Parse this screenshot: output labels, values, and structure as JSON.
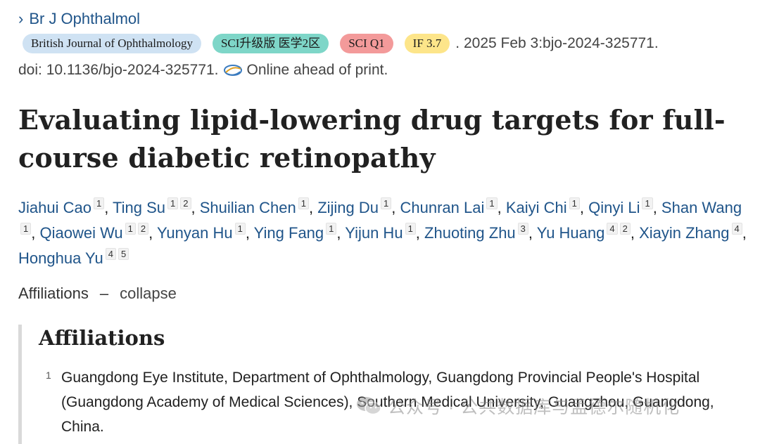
{
  "journal_link": {
    "label": "Br J Ophthalmol"
  },
  "badges": {
    "journal_full": "British Journal of Ophthalmology",
    "sci_partition": "SCI升级版 医学2区",
    "sci_q": "SCI Q1",
    "impact_factor": "IF 3.7"
  },
  "citation": {
    "date_id": ". 2025 Feb 3:bjo-2024-325771.",
    "doi": "doi: 10.1136/bjo-2024-325771.",
    "status": "Online ahead of print."
  },
  "title": "Evaluating lipid-lowering drug targets for full-course diabetic retinopathy",
  "authors": [
    {
      "name": "Jiahui Cao",
      "affs": [
        "1"
      ]
    },
    {
      "name": "Ting Su",
      "affs": [
        "1",
        "2"
      ]
    },
    {
      "name": "Shuilian Chen",
      "affs": [
        "1"
      ]
    },
    {
      "name": "Zijing Du",
      "affs": [
        "1"
      ]
    },
    {
      "name": "Chunran Lai",
      "affs": [
        "1"
      ]
    },
    {
      "name": "Kaiyi Chi",
      "affs": [
        "1"
      ]
    },
    {
      "name": "Qinyi Li",
      "affs": [
        "1"
      ]
    },
    {
      "name": "Shan Wang",
      "affs": [
        "1"
      ]
    },
    {
      "name": "Qiaowei Wu",
      "affs": [
        "1",
        "2"
      ]
    },
    {
      "name": "Yunyan Hu",
      "affs": [
        "1"
      ]
    },
    {
      "name": "Ying Fang",
      "affs": [
        "1"
      ]
    },
    {
      "name": "Yijun Hu",
      "affs": [
        "1"
      ]
    },
    {
      "name": "Zhuoting Zhu",
      "affs": [
        "3"
      ]
    },
    {
      "name": "Yu Huang",
      "affs": [
        "4",
        "2"
      ]
    },
    {
      "name": "Xiayin Zhang",
      "affs": [
        "4"
      ]
    },
    {
      "name": "Honghua Yu",
      "affs": [
        "4",
        "5"
      ]
    }
  ],
  "affiliations_toggle": {
    "label": "Affiliations",
    "dash": "–",
    "action": "collapse"
  },
  "affiliations": {
    "heading": "Affiliations",
    "items": [
      {
        "num": "1",
        "text": "Guangdong Eye Institute, Department of Ophthalmology, Guangdong Provincial People's Hospital (Guangdong Academy of Medical Sciences), Southern Medical University, Guangzhou, Guangdong, China."
      }
    ]
  },
  "watermark": {
    "text": "公众号 · 公共数据库与孟德尔随机化"
  },
  "colors": {
    "link": "#20558a",
    "badge_journal": "#cfe2f3",
    "badge_sci": "#7ed6c8",
    "badge_q1": "#f39a9a",
    "badge_if": "#fde58a"
  },
  "icons": {
    "journal_chevron": "chevron-right-icon",
    "online_print": "publisher-swirl-icon",
    "watermark": "wechat-icon"
  }
}
